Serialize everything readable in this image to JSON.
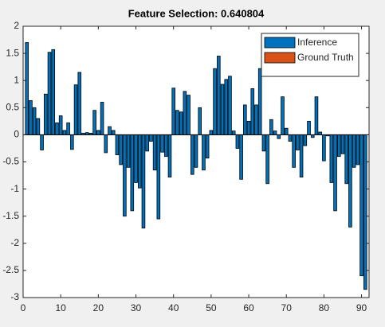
{
  "chart_data": {
    "type": "bar",
    "title": "Feature Selection: 0.640804",
    "x": [
      1,
      2,
      3,
      4,
      5,
      6,
      7,
      8,
      9,
      10,
      11,
      12,
      13,
      14,
      15,
      16,
      17,
      18,
      19,
      20,
      21,
      22,
      23,
      24,
      25,
      26,
      27,
      28,
      29,
      30,
      31,
      32,
      33,
      34,
      35,
      36,
      37,
      38,
      39,
      40,
      41,
      42,
      43,
      44,
      45,
      46,
      47,
      48,
      49,
      50,
      51,
      52,
      53,
      54,
      55,
      56,
      57,
      58,
      59,
      60,
      61,
      62,
      63,
      64,
      65,
      66,
      67,
      68,
      69,
      70,
      71,
      72,
      73,
      74,
      75,
      76,
      77,
      78,
      79,
      80,
      81,
      82,
      83,
      84,
      85,
      86,
      87,
      88,
      89,
      90,
      91
    ],
    "series": [
      {
        "name": "Inference",
        "color": "#0072bd",
        "values": [
          1.7,
          0.63,
          0.5,
          0.3,
          -0.28,
          0.75,
          1.52,
          1.57,
          0.22,
          0.35,
          0.08,
          0.22,
          -0.27,
          0.92,
          1.15,
          0.03,
          0.04,
          0.03,
          0.45,
          0.08,
          0.6,
          -0.33,
          0.15,
          0.08,
          -0.37,
          -0.55,
          -1.5,
          -0.6,
          -1.4,
          -0.88,
          -0.98,
          -1.72,
          -0.3,
          -0.12,
          -0.65,
          -1.55,
          -0.32,
          -0.4,
          -0.78,
          0.86,
          0.45,
          0.42,
          0.8,
          0.73,
          -0.73,
          -0.6,
          0.5,
          -0.65,
          -0.43,
          0.08,
          1.22,
          1.45,
          0.93,
          1.02,
          1.08,
          0.07,
          -0.25,
          -0.82,
          0.55,
          0.25,
          0.85,
          0.55,
          1.22,
          -0.3,
          -0.9,
          0.28,
          0.07,
          -0.07,
          0.7,
          0.12,
          -0.12,
          -0.6,
          -0.28,
          -0.78,
          -0.2,
          0.25,
          -0.05,
          0.7,
          0.05,
          -0.48,
          -0.02,
          -0.88,
          -1.4,
          -0.4,
          -0.35,
          -0.9,
          -1.7,
          -0.6,
          -0.55,
          -2.6,
          -2.85
        ]
      },
      {
        "name": "Ground Truth",
        "color": "#d95319",
        "values": [
          null,
          null,
          null,
          null,
          null,
          null,
          null,
          null,
          null,
          null,
          null,
          null,
          null,
          null,
          null,
          null,
          null,
          null,
          null,
          null,
          null,
          null,
          null,
          null,
          null,
          null,
          null,
          null,
          null,
          null,
          null,
          null,
          null,
          null,
          null,
          null,
          null,
          null,
          null,
          null,
          null,
          null,
          null,
          null,
          null,
          null,
          null,
          null,
          null,
          null,
          null,
          null,
          null,
          null,
          null,
          null,
          null,
          null,
          null,
          null,
          null,
          null,
          null,
          null,
          null,
          null,
          null,
          null,
          null,
          null,
          null,
          null,
          null,
          null,
          null,
          null,
          null,
          null,
          null,
          null,
          null,
          null,
          null,
          null,
          null,
          null,
          null,
          null,
          null,
          null,
          null
        ]
      }
    ],
    "xlim": [
      0,
      92
    ],
    "xticks": [
      0,
      10,
      20,
      30,
      40,
      50,
      60,
      70,
      80,
      90
    ],
    "ylim": [
      -3,
      2
    ],
    "yticks": [
      -3,
      -2.5,
      -2,
      -1.5,
      -1,
      -0.5,
      0,
      0.5,
      1,
      1.5,
      2
    ],
    "legend": "top-right"
  }
}
